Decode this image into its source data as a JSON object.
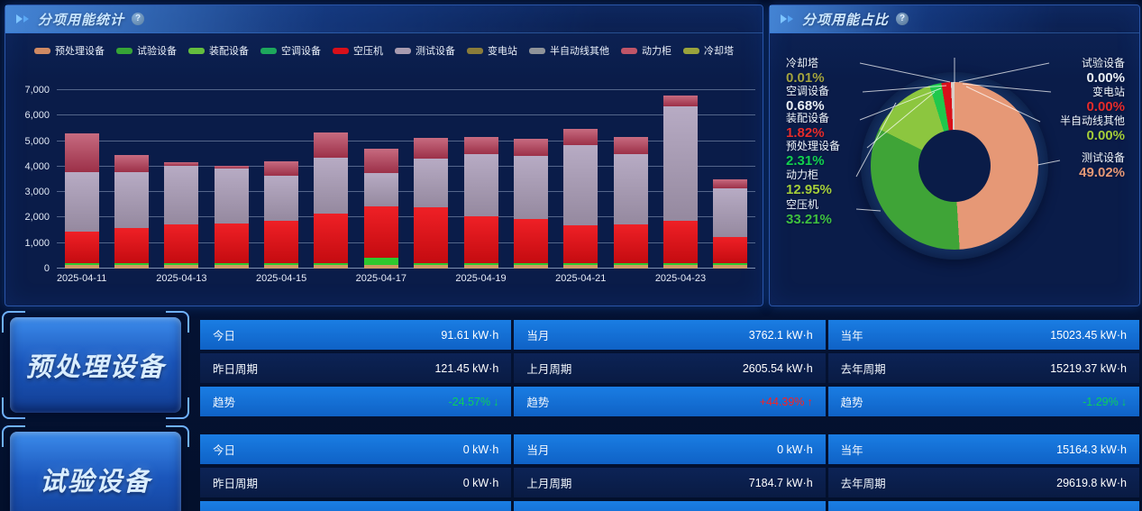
{
  "icons": {
    "help_glyph": "?"
  },
  "bar_panel": {
    "title": "分项用能统计",
    "legend": [
      {
        "name": "预处理设备",
        "color": "#cf8a63"
      },
      {
        "name": "试验设备",
        "color": "#36a436"
      },
      {
        "name": "装配设备",
        "color": "#64bd3e"
      },
      {
        "name": "空调设备",
        "color": "#1da75c"
      },
      {
        "name": "空压机",
        "color": "#d8101a"
      },
      {
        "name": "测试设备",
        "color": "#a89bb0"
      },
      {
        "name": "变电站",
        "color": "#8a7c3a"
      },
      {
        "name": "半自动线其他",
        "color": "#8f9399"
      },
      {
        "name": "动力柜",
        "color": "#c05568"
      },
      {
        "name": "冷却塔",
        "color": "#9aa33c"
      }
    ]
  },
  "pie_panel": {
    "title": "分项用能占比",
    "left_labels": [
      {
        "name": "冷却塔",
        "pct_text": "0.01%",
        "color": "#a3a33f"
      },
      {
        "name": "空调设备",
        "pct_text": "0.68%",
        "color": "#e9eff6"
      },
      {
        "name": "装配设备",
        "pct_text": "1.82%",
        "color": "#e62b2b"
      },
      {
        "name": "预处理设备",
        "pct_text": "2.31%",
        "color": "#12d14e"
      },
      {
        "name": "动力柜",
        "pct_text": "12.95%",
        "color": "#a4cd3a"
      },
      {
        "name": "空压机",
        "pct_text": "33.21%",
        "color": "#3fbf3f"
      }
    ],
    "right_labels": [
      {
        "name": "试验设备",
        "pct_text": "0.00%",
        "color": "#e9eff6"
      },
      {
        "name": "变电站",
        "pct_text": "0.00%",
        "color": "#e62b2b"
      },
      {
        "name": "半自动线其他",
        "pct_text": "0.00%",
        "color": "#a4cd3a"
      },
      {
        "name": "测试设备",
        "pct_text": "49.02%",
        "color": "#e69876"
      }
    ]
  },
  "chart_data": [
    {
      "type": "bar",
      "stacked": true,
      "title": "分项用能统计",
      "grid": true,
      "ylim": [
        0,
        7000
      ],
      "y_tick_step": 1000,
      "categories": [
        "2025-04-11",
        "2025-04-12",
        "2025-04-13",
        "2025-04-14",
        "2025-04-15",
        "2025-04-16",
        "2025-04-17",
        "2025-04-18",
        "2025-04-19",
        "2025-04-20",
        "2025-04-21",
        "2025-04-22",
        "2025-04-23",
        "2025-04-24"
      ],
      "x_tick_labels": [
        "2025-04-11",
        "2025-04-13",
        "2025-04-15",
        "2025-04-17",
        "2025-04-19",
        "2025-04-21",
        "2025-04-23"
      ],
      "legend_entries": [
        "预处理设备",
        "试验设备",
        "装配设备",
        "空调设备",
        "空压机",
        "测试设备",
        "变电站",
        "半自动线其他",
        "动力柜",
        "冷却塔"
      ],
      "series": [
        {
          "name": "预处理设备",
          "color": "#cf9a63",
          "values": [
            130,
            130,
            130,
            130,
            130,
            130,
            130,
            130,
            130,
            130,
            130,
            130,
            130,
            130
          ]
        },
        {
          "name": "装配设备",
          "color": "#2ec82e",
          "values": [
            80,
            80,
            80,
            80,
            80,
            80,
            280,
            80,
            80,
            80,
            80,
            80,
            80,
            80
          ]
        },
        {
          "name": "空压机",
          "color": "#d8101a",
          "gradient": [
            "#ef2026",
            "#c40b10"
          ],
          "values": [
            1240,
            1380,
            1520,
            1560,
            1660,
            1950,
            2030,
            2190,
            1840,
            1730,
            1490,
            1520,
            1660,
            1030
          ]
        },
        {
          "name": "测试设备",
          "color": "#a89bb0",
          "gradient": [
            "#b7abc4",
            "#95899f"
          ],
          "values": [
            2330,
            2190,
            2300,
            2160,
            1770,
            2190,
            1310,
            1910,
            2440,
            2480,
            3140,
            2760,
            4490,
            1900
          ]
        },
        {
          "name": "动力柜",
          "color": "#c05568",
          "gradient": [
            "#c76b80",
            "#9c3048"
          ],
          "values": [
            1520,
            670,
            140,
            110,
            560,
            990,
            950,
            820,
            660,
            680,
            640,
            670,
            420,
            370
          ]
        }
      ]
    },
    {
      "type": "pie",
      "donut": true,
      "title": "分项用能占比",
      "slices": [
        {
          "name": "测试设备",
          "pct": 49.02,
          "color": "#e69876"
        },
        {
          "name": "空压机",
          "pct": 33.21,
          "color": "#3fa437"
        },
        {
          "name": "动力柜",
          "pct": 12.95,
          "color": "#8cc63f"
        },
        {
          "name": "预处理设备",
          "pct": 2.31,
          "color": "#1fc84c"
        },
        {
          "name": "装配设备",
          "pct": 1.82,
          "color": "#d8101a"
        },
        {
          "name": "空调设备",
          "pct": 0.68,
          "color": "#d9d0c9"
        },
        {
          "name": "冷却塔",
          "pct": 0.01,
          "color": "#9aa33c"
        },
        {
          "name": "试验设备",
          "pct": 0.0,
          "color": "#36a436"
        },
        {
          "name": "变电站",
          "pct": 0.0,
          "color": "#8a7c3a"
        },
        {
          "name": "半自动线其他",
          "pct": 0.0,
          "color": "#8f9399"
        }
      ]
    }
  ],
  "trend_colors": {
    "up": "#ff1f1f",
    "down": "#0bd05c"
  },
  "blocks": [
    {
      "title": "预处理设备",
      "rows": [
        {
          "type": "bright",
          "cells": [
            {
              "label": "今日",
              "value": "91.61 kW·h"
            },
            {
              "label": "当月",
              "value": "3762.1 kW·h"
            },
            {
              "label": "当年",
              "value": "15023.45 kW·h"
            }
          ]
        },
        {
          "type": "dark",
          "cells": [
            {
              "label": "昨日周期",
              "value": "121.45 kW·h"
            },
            {
              "label": "上月周期",
              "value": "2605.54 kW·h"
            },
            {
              "label": "去年周期",
              "value": "15219.37 kW·h"
            }
          ]
        },
        {
          "type": "bright",
          "cells": [
            {
              "label": "趋势",
              "value": "-24.57%",
              "trend": "down"
            },
            {
              "label": "趋势",
              "value": "+44.39%",
              "trend": "up"
            },
            {
              "label": "趋势",
              "value": "-1.29%",
              "trend": "down"
            }
          ]
        }
      ]
    },
    {
      "title": "试验设备",
      "rows": [
        {
          "type": "bright",
          "cells": [
            {
              "label": "今日",
              "value": "0 kW·h"
            },
            {
              "label": "当月",
              "value": "0 kW·h"
            },
            {
              "label": "当年",
              "value": "15164.3 kW·h"
            }
          ]
        },
        {
          "type": "dark",
          "cells": [
            {
              "label": "昨日周期",
              "value": "0 kW·h"
            },
            {
              "label": "上月周期",
              "value": "7184.7 kW·h"
            },
            {
              "label": "去年周期",
              "value": "29619.8 kW·h"
            }
          ]
        },
        {
          "type": "bright",
          "cells": [
            {
              "label": "",
              "value": ""
            },
            {
              "label": "",
              "value": ""
            },
            {
              "label": "",
              "value": ""
            }
          ]
        }
      ]
    }
  ]
}
